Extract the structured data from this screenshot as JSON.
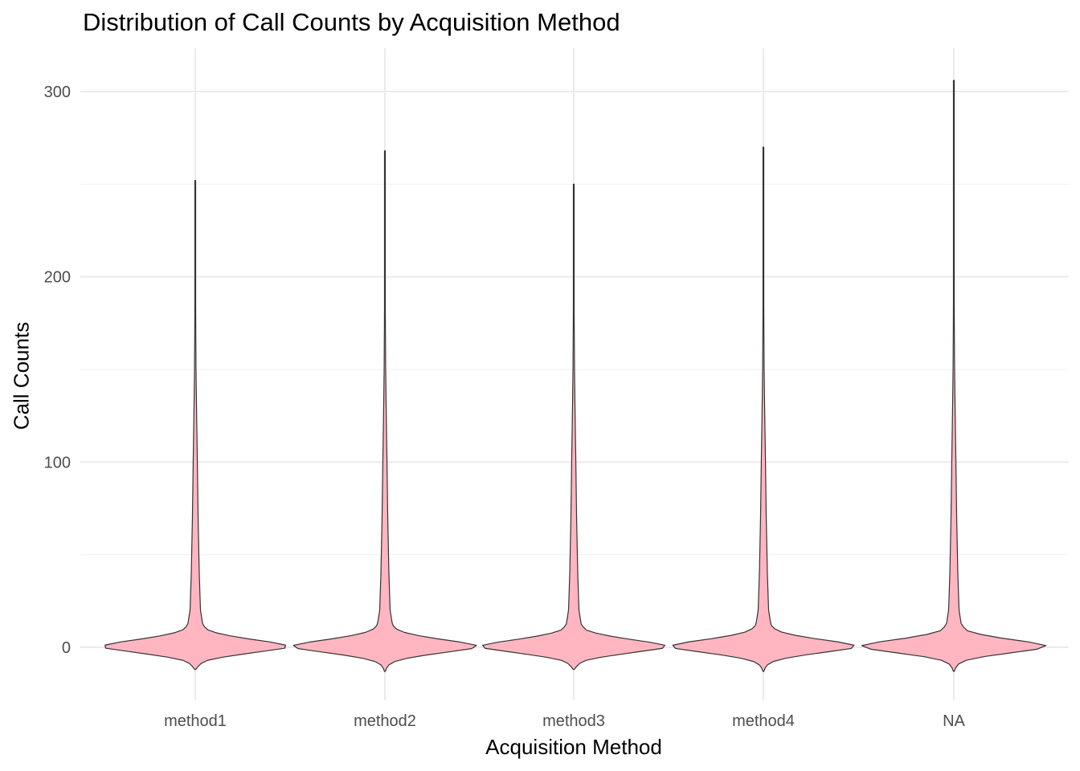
{
  "chart_data": {
    "type": "violin",
    "title": "Distribution of Call Counts by Acquisition Method",
    "xlabel": "Acquisition Method",
    "ylabel": "Call Counts",
    "categories": [
      "method1",
      "method2",
      "method3",
      "method4",
      "NA"
    ],
    "ylim": [
      -28,
      320
    ],
    "yticks": [
      0,
      100,
      200,
      300
    ],
    "grid": true,
    "fill_color": "#FFB6C1",
    "outline_color": "#333333",
    "series": [
      {
        "category": "method1",
        "min": -12,
        "max": 252
      },
      {
        "category": "method2",
        "min": -13,
        "max": 268
      },
      {
        "category": "method3",
        "min": -12,
        "max": 250
      },
      {
        "category": "method4",
        "min": -13,
        "max": 270
      },
      {
        "category": "NA",
        "min": -13,
        "max": 306
      }
    ]
  }
}
